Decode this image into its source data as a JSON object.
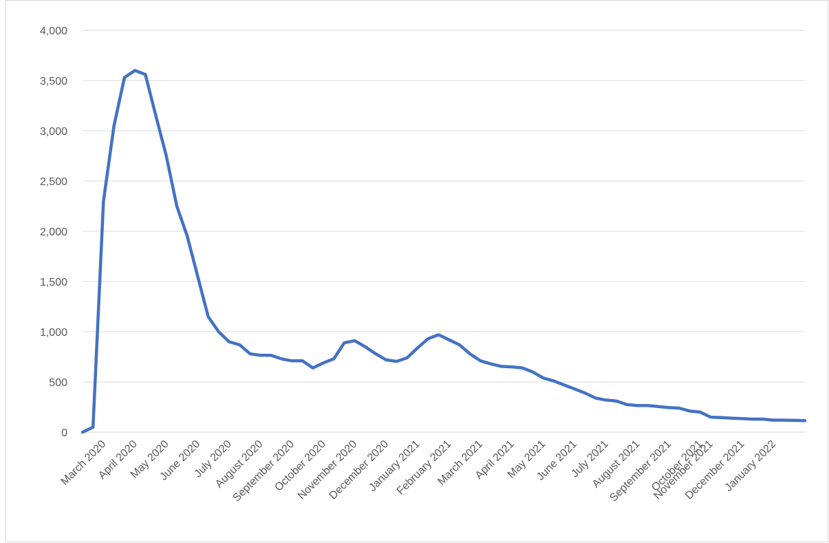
{
  "chart_data": {
    "type": "line",
    "categories": [
      null,
      null,
      "March 2020",
      null,
      null,
      "April 2020",
      null,
      null,
      "May 2020",
      null,
      null,
      "June 2020",
      null,
      null,
      "July 2020",
      null,
      null,
      "August 2020",
      null,
      null,
      "September 2020",
      null,
      null,
      "October 2020",
      null,
      null,
      "November 2020",
      null,
      null,
      "December 2020",
      null,
      null,
      "January 2021",
      null,
      null,
      "February 2021",
      null,
      null,
      "March 2021",
      null,
      null,
      "April 2021",
      null,
      null,
      "May 2021",
      null,
      null,
      "June 2021",
      null,
      null,
      "July 2021",
      null,
      null,
      "August 2021",
      null,
      null,
      "September 2021",
      null,
      null,
      "October 2021",
      "November 2021",
      null,
      null,
      "December 2021",
      null,
      null,
      "January 2022",
      null,
      null,
      null
    ],
    "values": [
      0,
      50,
      2300,
      3050,
      3530,
      3600,
      3560,
      3150,
      2750,
      2250,
      1950,
      1550,
      1150,
      1000,
      900,
      870,
      780,
      765,
      765,
      730,
      710,
      710,
      640,
      690,
      730,
      890,
      910,
      850,
      780,
      720,
      705,
      740,
      840,
      930,
      970,
      920,
      870,
      780,
      710,
      680,
      655,
      650,
      640,
      600,
      540,
      510,
      470,
      430,
      390,
      340,
      320,
      310,
      275,
      265,
      265,
      255,
      245,
      240,
      210,
      200,
      150,
      145,
      140,
      135,
      130,
      130,
      120,
      120,
      118,
      115
    ],
    "color": "#4472c4",
    "ylim": [
      0,
      4000
    ],
    "yticks": [
      0,
      500,
      {
        "value": 1000,
        "label": "1,000"
      },
      {
        "value": 1500,
        "label": "1,500"
      },
      {
        "value": 2000,
        "label": "2,000"
      },
      {
        "value": 2500,
        "label": "2,500"
      },
      {
        "value": 3000,
        "label": "3,000"
      },
      {
        "value": 3500,
        "label": "3,500"
      },
      {
        "value": 4000,
        "label": "4,000"
      }
    ],
    "grid": true
  }
}
